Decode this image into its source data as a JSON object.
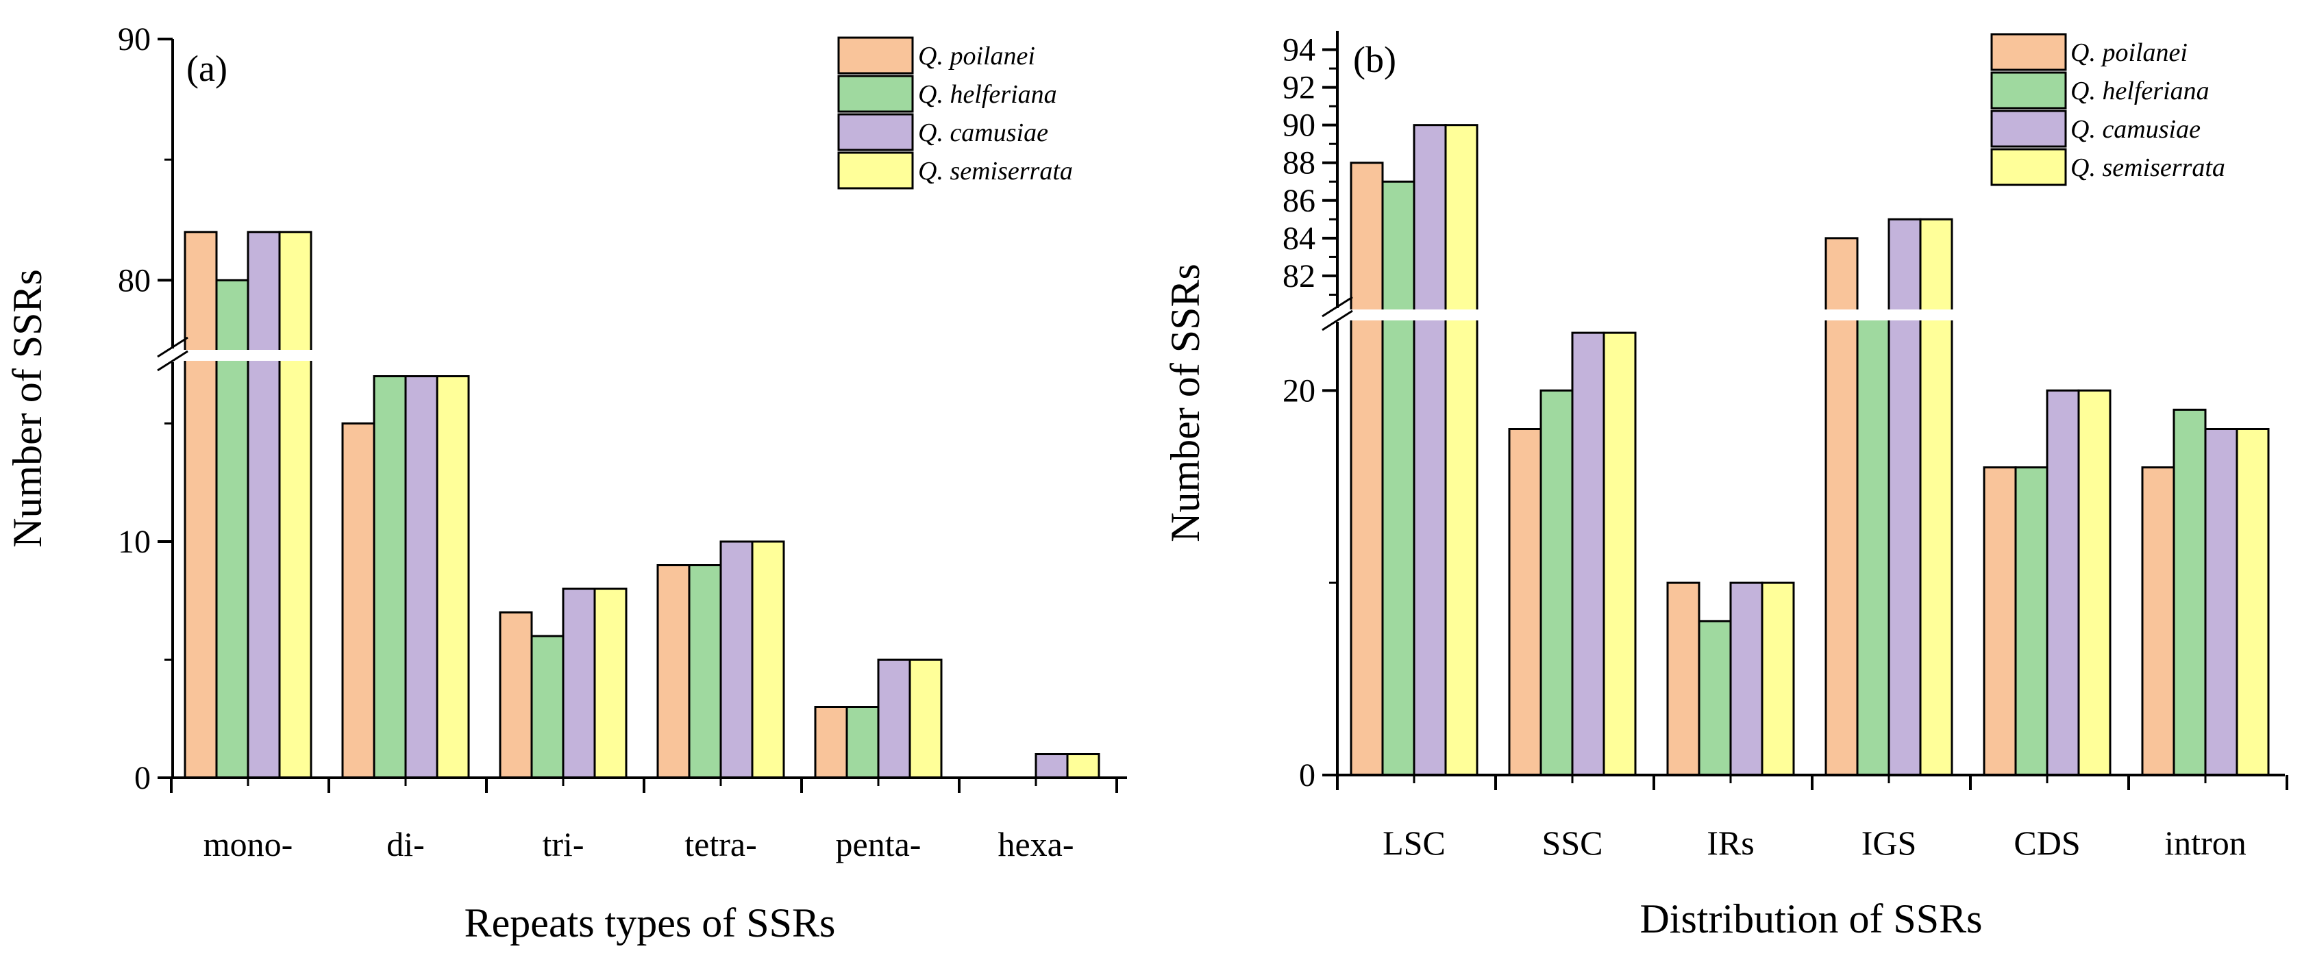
{
  "chart_data": [
    {
      "type": "bar",
      "panel_label": "(a)",
      "title": "",
      "xlabel": "Repeats types of SSRs",
      "ylabel": "Number of SSRs",
      "categories": [
        "mono-",
        "di-",
        "tri-",
        "tetra-",
        "penta-",
        "hexa-"
      ],
      "series": [
        {
          "name": "Q. poilanei",
          "color": "#F9C49A",
          "values": [
            82,
            15,
            7,
            9,
            3,
            0
          ]
        },
        {
          "name": "Q. helferiana",
          "color": "#9FD99F",
          "values": [
            80,
            17,
            6,
            9,
            3,
            0
          ]
        },
        {
          "name": "Q. camusiae",
          "color": "#C3B3DB",
          "values": [
            82,
            17,
            8,
            10,
            5,
            1
          ]
        },
        {
          "name": "Q. semiserrata",
          "color": "#FFFF99",
          "values": [
            82,
            17,
            8,
            10,
            5,
            1
          ]
        }
      ],
      "axis_break": {
        "lower_range": [
          0,
          18
        ],
        "upper_range": [
          77,
          90
        ]
      },
      "y_ticks": [
        0,
        10,
        80,
        90
      ],
      "legend_position": "top-right",
      "grid": false
    },
    {
      "type": "bar",
      "panel_label": "(b)",
      "title": "",
      "xlabel": "Distribution of SSRs",
      "ylabel": "Number of SSRs",
      "categories": [
        "LSC",
        "SSC",
        "IRs",
        "IGS",
        "CDS",
        "intron"
      ],
      "series": [
        {
          "name": "Q. poilanei",
          "color": "#F9C49A",
          "values": [
            88,
            18,
            10,
            84,
            16,
            16
          ]
        },
        {
          "name": "Q. helferiana",
          "color": "#9FD99F",
          "values": [
            87,
            20,
            8,
            80,
            16,
            19
          ]
        },
        {
          "name": "Q. camusiae",
          "color": "#C3B3DB",
          "values": [
            90,
            23,
            10,
            85,
            20,
            18
          ]
        },
        {
          "name": "Q. semiserrata",
          "color": "#FFFF99",
          "values": [
            90,
            23,
            10,
            85,
            20,
            18
          ]
        }
      ],
      "axis_break": {
        "lower_range": [
          0,
          24
        ],
        "upper_range": [
          80,
          95
        ]
      },
      "y_ticks": [
        0,
        20,
        82,
        84,
        86,
        88,
        90,
        92,
        94
      ],
      "legend_position": "top-right",
      "grid": false
    }
  ]
}
